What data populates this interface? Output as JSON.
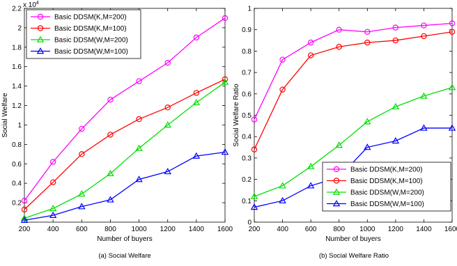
{
  "chart_data": [
    {
      "type": "line",
      "caption": "(a) Social Welfare",
      "xlabel": "Number of buyers",
      "ylabel": "Social Welfare",
      "y_multiplier": "x 10",
      "y_multiplier_exponent": "4",
      "x": [
        200,
        400,
        600,
        800,
        1000,
        1200,
        1400,
        1600
      ],
      "xticks": [
        "200",
        "400",
        "600",
        "800",
        "1000",
        "1200",
        "1400",
        "1600"
      ],
      "xlim": [
        200,
        1600
      ],
      "yticks": [
        {
          "v": 0.2,
          "label": "0.2"
        },
        {
          "v": 0.4,
          "label": "0.4"
        },
        {
          "v": 0.6,
          "label": "0.6"
        },
        {
          "v": 0.8,
          "label": "0.8"
        },
        {
          "v": 1.0,
          "label": "1"
        },
        {
          "v": 1.2,
          "label": "1.2"
        },
        {
          "v": 1.4,
          "label": "1.4"
        },
        {
          "v": 1.6,
          "label": "1.6"
        },
        {
          "v": 1.8,
          "label": "1.8"
        },
        {
          "v": 2.0,
          "label": "2"
        },
        {
          "v": 2.2,
          "label": "2.2"
        }
      ],
      "ylim": [
        0,
        2.2
      ],
      "legend_position": "top-left",
      "series": [
        {
          "name": "Basic DDSM(K,M=200)",
          "color": "#ff00ff",
          "marker": "circle",
          "values": [
            0.22,
            0.62,
            0.96,
            1.26,
            1.45,
            1.64,
            1.9,
            2.1
          ]
        },
        {
          "name": "Basic DDSM(K,M=100)",
          "color": "#ff0000",
          "marker": "circle",
          "values": [
            0.13,
            0.41,
            0.7,
            0.9,
            1.06,
            1.18,
            1.33,
            1.47
          ]
        },
        {
          "name": "Basic DDSM(W,M=200)",
          "color": "#00e000",
          "marker": "triangle",
          "values": [
            0.04,
            0.14,
            0.29,
            0.5,
            0.76,
            1.0,
            1.23,
            1.44
          ]
        },
        {
          "name": "Basic DDSM(W,M=100)",
          "color": "#0000ff",
          "marker": "triangle",
          "values": [
            0.02,
            0.07,
            0.16,
            0.23,
            0.44,
            0.52,
            0.68,
            0.72
          ]
        }
      ]
    },
    {
      "type": "line",
      "caption": "(b) Social Welfare Ratio",
      "xlabel": "Number of buyers",
      "ylabel": "Social Welfare Ratio",
      "x": [
        200,
        400,
        600,
        800,
        1000,
        1200,
        1400,
        1600
      ],
      "xticks": [
        "200",
        "400",
        "600",
        "800",
        "1000",
        "1200",
        "1400",
        "1600"
      ],
      "xlim": [
        200,
        1600
      ],
      "yticks": [
        {
          "v": 0,
          "label": "0"
        },
        {
          "v": 0.1,
          "label": "0.1"
        },
        {
          "v": 0.2,
          "label": "0.2"
        },
        {
          "v": 0.3,
          "label": "0.3"
        },
        {
          "v": 0.4,
          "label": "0.4"
        },
        {
          "v": 0.5,
          "label": "0.5"
        },
        {
          "v": 0.6,
          "label": "0.6"
        },
        {
          "v": 0.7,
          "label": "0.7"
        },
        {
          "v": 0.8,
          "label": "0.8"
        },
        {
          "v": 0.9,
          "label": "0.9"
        },
        {
          "v": 1.0,
          "label": "1"
        }
      ],
      "ylim": [
        0,
        1
      ],
      "legend_position": "bottom-right",
      "series": [
        {
          "name": "Basic DDSM(K,M=200)",
          "color": "#ff00ff",
          "marker": "circle",
          "values": [
            0.48,
            0.76,
            0.84,
            0.9,
            0.89,
            0.91,
            0.92,
            0.93
          ]
        },
        {
          "name": "Basic DDSM(K,M=100)",
          "color": "#ff0000",
          "marker": "circle",
          "values": [
            0.34,
            0.62,
            0.78,
            0.82,
            0.84,
            0.85,
            0.87,
            0.89
          ]
        },
        {
          "name": "Basic DDSM(W,M=200)",
          "color": "#00e000",
          "marker": "triangle",
          "values": [
            0.12,
            0.17,
            0.26,
            0.36,
            0.47,
            0.54,
            0.59,
            0.63
          ]
        },
        {
          "name": "Basic DDSM(W,M=100)",
          "color": "#0000ff",
          "marker": "triangle",
          "values": [
            0.07,
            0.1,
            0.17,
            0.21,
            0.35,
            0.38,
            0.44,
            0.44
          ]
        }
      ]
    }
  ]
}
